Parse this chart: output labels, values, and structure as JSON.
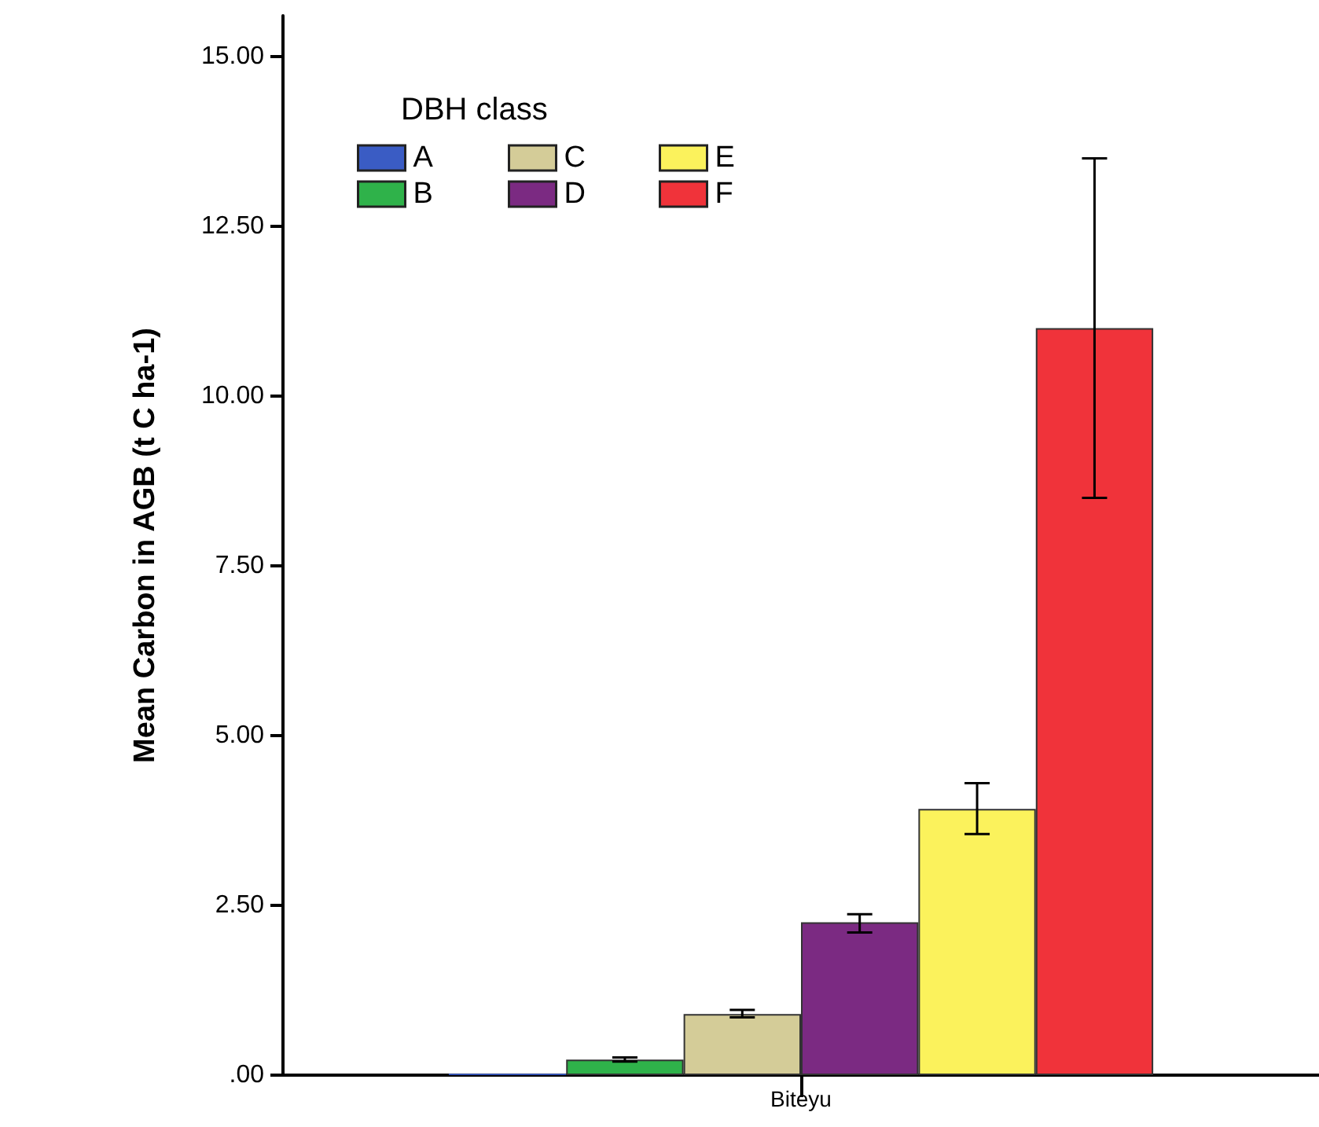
{
  "chart_data": {
    "type": "bar",
    "ylabel": "Mean Carbon in AGB (t C ha-1)",
    "legend_title": "DBH class",
    "categories": [
      "Biteyu"
    ],
    "series": [
      {
        "name": "A",
        "color": "#3a5cc4",
        "values": [
          0.02
        ]
      },
      {
        "name": "B",
        "color": "#2fb24a",
        "values": [
          0.23
        ],
        "errors": [
          [
            0.2,
            0.26
          ]
        ]
      },
      {
        "name": "C",
        "color": "#d4cc98",
        "values": [
          0.9
        ],
        "errors": [
          [
            0.85,
            0.96
          ]
        ]
      },
      {
        "name": "D",
        "color": "#7b2a82",
        "values": [
          2.25
        ],
        "errors": [
          [
            2.1,
            2.37
          ]
        ]
      },
      {
        "name": "E",
        "color": "#fbf25c",
        "values": [
          3.92
        ],
        "errors": [
          [
            3.55,
            4.3
          ]
        ]
      },
      {
        "name": "F",
        "color": "#f0333a",
        "values": [
          11.0
        ],
        "errors": [
          [
            8.5,
            13.5
          ]
        ]
      }
    ],
    "ylim": [
      0,
      15.6
    ],
    "yticks": [
      {
        "value": 0,
        "label": ".00"
      },
      {
        "value": 2.5,
        "label": "2.50"
      },
      {
        "value": 5,
        "label": "5.00"
      },
      {
        "value": 7.5,
        "label": "7.50"
      },
      {
        "value": 10,
        "label": "10.00"
      },
      {
        "value": 12.5,
        "label": "12.50"
      },
      {
        "value": 15,
        "label": "15.00"
      }
    ],
    "legend": "top left",
    "grid": false
  }
}
